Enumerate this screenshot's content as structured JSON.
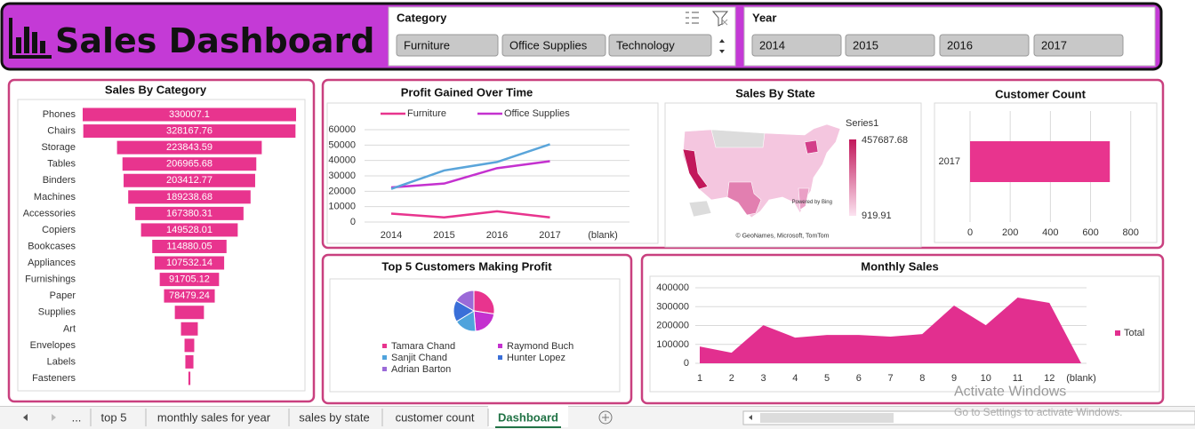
{
  "header": {
    "title": "Sales Dashboard"
  },
  "slicers": [
    {
      "title": "Category",
      "items": [
        "Furniture",
        "Office Supplies",
        "Technology"
      ]
    },
    {
      "title": "Year",
      "items": [
        "2014",
        "2015",
        "2016",
        "2017"
      ]
    }
  ],
  "chart_data": [
    {
      "type": "funnel",
      "title": "Sales By Category",
      "categories": [
        "Phones",
        "Chairs",
        "Storage",
        "Tables",
        "Binders",
        "Machines",
        "Accessories",
        "Copiers",
        "Bookcases",
        "Appliances",
        "Furnishings",
        "Paper",
        "Supplies",
        "Art",
        "Envelopes",
        "Labels",
        "Fasteners"
      ],
      "values": [
        330007.1,
        328167.76,
        223843.59,
        206965.68,
        203412.77,
        189238.68,
        167380.31,
        149528.01,
        114880.05,
        107532.14,
        91705.12,
        78479.24,
        45000,
        26000,
        15000,
        12500,
        3000
      ],
      "value_labels": [
        "330007.1",
        "328167.76",
        "223843.59",
        "206965.68",
        "203412.77",
        "189238.68",
        "167380.31",
        "149528.01",
        "114880.05",
        "107532.14",
        "91705.12",
        "78479.24",
        null,
        null,
        null,
        null,
        null
      ],
      "color": "#e8348e"
    },
    {
      "type": "line",
      "title": "Profit Gained Over Time",
      "categories": [
        "2014",
        "2015",
        "2016",
        "2017",
        "(blank)"
      ],
      "series": [
        {
          "name": "Furniture",
          "color": "#e8348e",
          "values": [
            5500,
            3000,
            7000,
            3000,
            null
          ]
        },
        {
          "name": "Office Supplies",
          "color": "#c431cf",
          "values": [
            22500,
            25000,
            35000,
            39500,
            null
          ]
        },
        {
          "color": "#5aa5da",
          "values": [
            21500,
            33500,
            39000,
            50500,
            null
          ]
        }
      ],
      "ylim": [
        0,
        60000
      ],
      "yticks": [
        0,
        10000,
        20000,
        30000,
        40000,
        50000,
        60000
      ],
      "grid": true
    },
    {
      "type": "map",
      "title": "Sales By State",
      "legend_title": "Series1",
      "color_range": [
        919.91,
        457687.68
      ],
      "colors": [
        "#fbe3f0",
        "#c2185b"
      ],
      "attribution": [
        "Powered by Bing",
        "© GeoNames, Microsoft, TomTom"
      ]
    },
    {
      "type": "hbar",
      "title": "Customer Count",
      "categories": [
        "2017"
      ],
      "values": [
        696
      ],
      "color": "#e8348e",
      "xlim": [
        0,
        850
      ],
      "xticks": [
        0,
        200,
        400,
        600,
        800
      ],
      "grid": true
    },
    {
      "type": "pie",
      "title": "Top 5 Customers Making Profit",
      "categories": [
        "Tamara Chand",
        "Raymond Buch",
        "Sanjit Chand",
        "Hunter Lopez",
        "Adrian Barton"
      ],
      "values": [
        8981,
        6976,
        5757,
        5622,
        5444
      ],
      "colors": [
        "#e8348e",
        "#c431cf",
        "#4fa3dc",
        "#3a6fd8",
        "#9b6ad8"
      ]
    },
    {
      "type": "area",
      "title": "Monthly Sales",
      "categories": [
        "1",
        "2",
        "3",
        "4",
        "5",
        "6",
        "7",
        "8",
        "9",
        "10",
        "11",
        "12",
        "(blank)"
      ],
      "series": [
        {
          "name": "Total",
          "color": "#e22f8f",
          "values": [
            89000,
            56000,
            202000,
            136000,
            150000,
            150000,
            141000,
            155000,
            306000,
            202000,
            348000,
            320000,
            0
          ]
        }
      ],
      "ylim": [
        0,
        400000
      ],
      "yticks": [
        0,
        100000,
        200000,
        300000,
        400000
      ],
      "grid": true
    }
  ],
  "sheet_tabs": [
    "...",
    "top 5",
    "monthly sales for year",
    "sales by state",
    "customer count",
    "Dashboard"
  ],
  "active_tab": 5,
  "watermark": [
    "Activate Windows",
    "Go to Settings to activate Windows."
  ]
}
